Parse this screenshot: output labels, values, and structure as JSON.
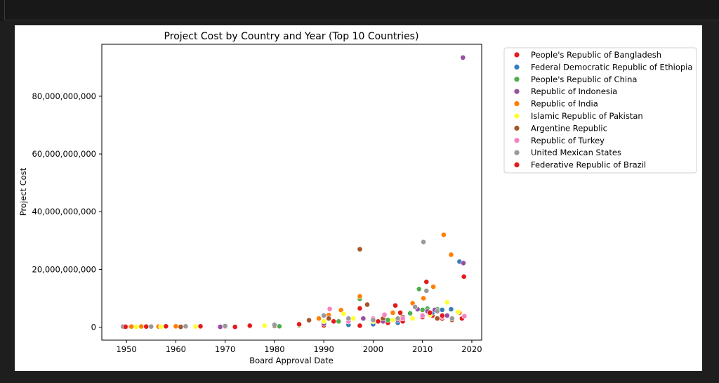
{
  "chart_data": {
    "type": "scatter",
    "title": "Project Cost by Country and Year (Top 10 Countries)",
    "xlabel": "Board Approval Date",
    "ylabel": "Project Cost",
    "xlim": [
      1945,
      2022
    ],
    "ylim": [
      -4500000000,
      98000000000
    ],
    "x_ticks": [
      1950,
      1960,
      1970,
      1980,
      1990,
      2000,
      2010,
      2020
    ],
    "x_tick_labels": [
      "1950",
      "1960",
      "1970",
      "1980",
      "1990",
      "2000",
      "2010",
      "2020"
    ],
    "y_ticks": [
      0,
      20000000000,
      40000000000,
      60000000000,
      80000000000
    ],
    "y_tick_labels": [
      "0",
      "20,000,000,000",
      "40,000,000,000",
      "60,000,000,000",
      "80,000,000,000"
    ],
    "grid": false,
    "legend_position": "outside-right",
    "series": [
      {
        "name": "People's Republic of Bangladesh",
        "color": "#e41a1c",
        "points": [
          [
            1972,
            100000000
          ],
          [
            1975,
            200000000
          ],
          [
            1980,
            300000000
          ],
          [
            1985,
            400000000
          ],
          [
            1990,
            600000000
          ],
          [
            1995,
            900000000
          ],
          [
            2000,
            1200000000
          ],
          [
            2003,
            1500000000
          ],
          [
            2006,
            2000000000
          ],
          [
            2008,
            3000000000
          ],
          [
            2010,
            3500000000
          ],
          [
            2012,
            4000000000
          ],
          [
            2014,
            3000000000
          ],
          [
            2016,
            2500000000
          ],
          [
            2018,
            3000000000
          ]
        ]
      },
      {
        "name": "Federal Democratic Republic of Ethiopia",
        "color": "#377eb8",
        "points": [
          [
            1950,
            100000000
          ],
          [
            1955,
            150000000
          ],
          [
            1965,
            200000000
          ],
          [
            1975,
            300000000
          ],
          [
            1985,
            500000000
          ],
          [
            1995,
            800000000
          ],
          [
            2000,
            1000000000
          ],
          [
            2005,
            1500000000
          ],
          [
            2008,
            3000000000
          ],
          [
            2010,
            4000000000
          ],
          [
            2012,
            5000000000
          ],
          [
            2014,
            6000000000
          ],
          [
            2015.8,
            6200000000
          ],
          [
            2017.5,
            22700000000
          ]
        ]
      },
      {
        "name": "People's Republic of China",
        "color": "#4daf4a",
        "points": [
          [
            1981,
            300000000
          ],
          [
            1985,
            500000000
          ],
          [
            1990,
            1500000000
          ],
          [
            1993,
            2000000000
          ],
          [
            1997.3,
            9800000000
          ],
          [
            2000,
            2000000000
          ],
          [
            2003,
            2500000000
          ],
          [
            2006,
            3500000000
          ],
          [
            2007.5,
            4800000000
          ],
          [
            2009.3,
            13200000000
          ],
          [
            2010,
            6000000000
          ],
          [
            2011,
            6400000000
          ],
          [
            2013,
            6200000000
          ],
          [
            2016,
            2500000000
          ]
        ]
      },
      {
        "name": "Republic of Indonesia",
        "color": "#984ea3",
        "points": [
          [
            1969,
            100000000
          ],
          [
            1975,
            300000000
          ],
          [
            1980,
            500000000
          ],
          [
            1985,
            800000000
          ],
          [
            1990,
            1200000000
          ],
          [
            1995,
            2000000000
          ],
          [
            1998,
            3000000000
          ],
          [
            2002,
            2000000000
          ],
          [
            2005,
            2500000000
          ],
          [
            2009,
            6200000000
          ],
          [
            2011,
            5500000000
          ],
          [
            2012.5,
            6000000000
          ],
          [
            2015,
            4000000000
          ],
          [
            2018.3,
            22200000000
          ],
          [
            2018.2,
            93400000000
          ]
        ]
      },
      {
        "name": "Republic of India",
        "color": "#ff7f00",
        "points": [
          [
            1949.5,
            200000000
          ],
          [
            1951,
            200000000
          ],
          [
            1953,
            250000000
          ],
          [
            1956.5,
            200000000
          ],
          [
            1960,
            300000000
          ],
          [
            1965,
            300000000
          ],
          [
            1970,
            400000000
          ],
          [
            1975,
            500000000
          ],
          [
            1980,
            800000000
          ],
          [
            1985,
            1200000000
          ],
          [
            1989,
            3000000000
          ],
          [
            1991,
            4200000000
          ],
          [
            1993.5,
            5900000000
          ],
          [
            1997.3,
            10700000000
          ],
          [
            2000,
            3000000000
          ],
          [
            2004,
            5000000000
          ],
          [
            2008,
            8300000000
          ],
          [
            2010.2,
            10000000000
          ],
          [
            2012.2,
            14000000000
          ],
          [
            2014.3,
            32000000000
          ],
          [
            2015.8,
            25100000000
          ],
          [
            2017.5,
            5000000000
          ]
        ]
      },
      {
        "name": "Islamic Republic of Pakistan",
        "color": "#ffff33",
        "points": [
          [
            1952,
            100000000
          ],
          [
            1957,
            150000000
          ],
          [
            1964,
            200000000
          ],
          [
            1970,
            300000000
          ],
          [
            1978,
            500000000
          ],
          [
            1985,
            800000000
          ],
          [
            1990,
            2000000000
          ],
          [
            1994,
            4600000000
          ],
          [
            1996,
            3000000000
          ],
          [
            2000,
            2000000000
          ],
          [
            2004,
            2500000000
          ],
          [
            2008,
            3000000000
          ],
          [
            2011.5,
            4200000000
          ],
          [
            2015,
            8600000000
          ],
          [
            2017.2,
            5300000000
          ]
        ]
      },
      {
        "name": "Argentine Republic",
        "color": "#a65628",
        "points": [
          [
            1961,
            100000000
          ],
          [
            1970,
            200000000
          ],
          [
            1980,
            400000000
          ],
          [
            1987,
            2400000000
          ],
          [
            1991,
            3000000000
          ],
          [
            1995,
            2500000000
          ],
          [
            1997.3,
            27000000000
          ],
          [
            1998.8,
            7800000000
          ],
          [
            2002,
            3000000000
          ],
          [
            2006,
            3500000000
          ],
          [
            2010,
            4000000000
          ],
          [
            2013,
            3000000000
          ],
          [
            2016,
            2500000000
          ]
        ]
      },
      {
        "name": "Republic of Turkey",
        "color": "#f781bf",
        "points": [
          [
            1950,
            100000000
          ],
          [
            1955,
            150000000
          ],
          [
            1965,
            200000000
          ],
          [
            1975,
            500000000
          ],
          [
            1985,
            1000000000
          ],
          [
            1991.2,
            6300000000
          ],
          [
            1995,
            2000000000
          ],
          [
            2000,
            3000000000
          ],
          [
            2002.3,
            4300000000
          ],
          [
            2006,
            3000000000
          ],
          [
            2010,
            4000000000
          ],
          [
            2014,
            3500000000
          ],
          [
            2018.5,
            3800000000
          ]
        ]
      },
      {
        "name": "United Mexican States",
        "color": "#999999",
        "points": [
          [
            1949.3,
            200000000
          ],
          [
            1955,
            200000000
          ],
          [
            1962,
            300000000
          ],
          [
            1970,
            400000000
          ],
          [
            1980,
            800000000
          ],
          [
            1990,
            4000000000
          ],
          [
            1995,
            3000000000
          ],
          [
            2000,
            2500000000
          ],
          [
            2005,
            3000000000
          ],
          [
            2008.5,
            7000000000
          ],
          [
            2010.2,
            29500000000
          ],
          [
            2010.8,
            12600000000
          ],
          [
            2013,
            5500000000
          ],
          [
            2016,
            3000000000
          ]
        ]
      },
      {
        "name": "Federative Republic of Brazil",
        "color": "#e41a1c",
        "points": [
          [
            1949.8,
            150000000
          ],
          [
            1954,
            200000000
          ],
          [
            1958,
            300000000
          ],
          [
            1965,
            300000000
          ],
          [
            1975,
            500000000
          ],
          [
            1985,
            1000000000
          ],
          [
            1992,
            2000000000
          ],
          [
            1997.3,
            6500000000
          ],
          [
            1997.3,
            500000000
          ],
          [
            2001,
            2000000000
          ],
          [
            2004.5,
            7500000000
          ],
          [
            2005.5,
            5000000000
          ],
          [
            2010.8,
            15700000000
          ],
          [
            2011.5,
            5000000000
          ],
          [
            2014,
            4000000000
          ],
          [
            2018.4,
            17500000000
          ]
        ]
      }
    ]
  }
}
